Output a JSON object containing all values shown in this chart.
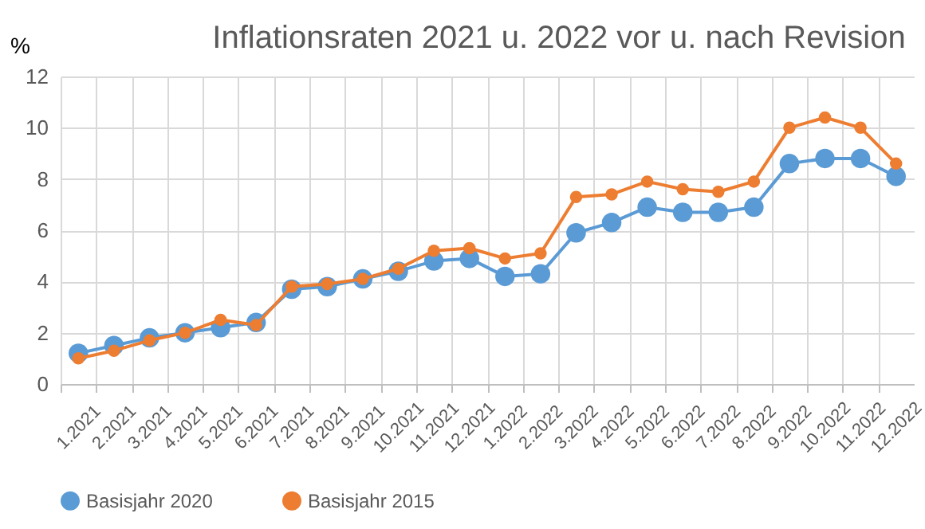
{
  "chart_data": {
    "type": "line",
    "title": "Inflationsraten 2021 u. 2022 vor u. nach Revision",
    "ylabel": "%",
    "categories": [
      "1.2021",
      "2.2021",
      "3.2021",
      "4.2021",
      "5.2021",
      "6.2021",
      "7.2021",
      "8.2021",
      "9.2021",
      "10.2021",
      "11.2021",
      "12.2021",
      "1.2022",
      "2.2022",
      "3.2022",
      "4.2022",
      "5.2022",
      "6.2022",
      "7.2022",
      "8.2022",
      "9.2022",
      "10.2022",
      "11.2022",
      "12.2022"
    ],
    "series": [
      {
        "name": "Basisjahr 2020",
        "color": "#5b9bd5",
        "values": [
          1.2,
          1.5,
          1.8,
          2.0,
          2.2,
          2.4,
          3.7,
          3.8,
          4.1,
          4.4,
          4.8,
          4.9,
          4.2,
          4.3,
          5.9,
          6.3,
          6.9,
          6.7,
          6.7,
          6.9,
          8.6,
          8.8,
          8.8,
          8.1
        ]
      },
      {
        "name": "Basisjahr 2015",
        "color": "#ed7d31",
        "values": [
          1.0,
          1.3,
          1.7,
          2.0,
          2.5,
          2.3,
          3.8,
          3.9,
          4.1,
          4.5,
          5.2,
          5.3,
          4.9,
          5.1,
          7.3,
          7.4,
          7.9,
          7.6,
          7.5,
          7.9,
          10.0,
          10.4,
          10.0,
          8.6
        ]
      }
    ],
    "ylim": [
      0,
      12
    ],
    "yticks": [
      0,
      2,
      4,
      6,
      8,
      10,
      12
    ],
    "grid": true,
    "legend": "bottom",
    "marker": "circle",
    "line_style": "solid"
  }
}
